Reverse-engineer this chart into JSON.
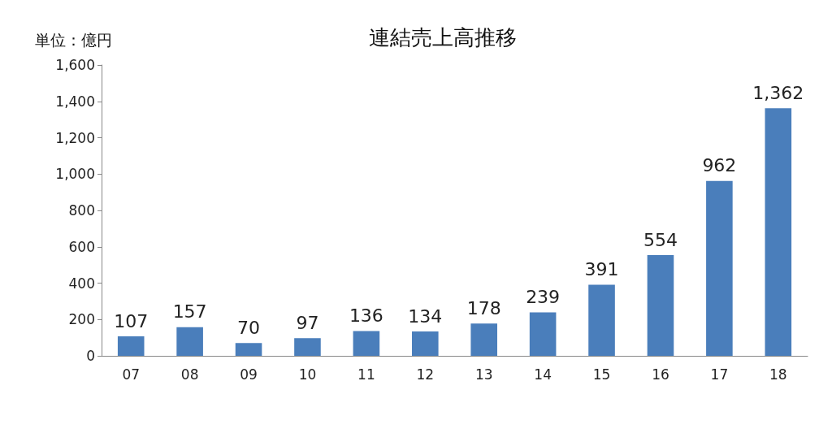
{
  "chart_data": {
    "type": "bar",
    "title": "連結売上高推移",
    "ylabel": "単位：億円",
    "categories": [
      "07",
      "08",
      "09",
      "10",
      "11",
      "12",
      "13",
      "14",
      "15",
      "16",
      "17",
      "18"
    ],
    "values": [
      107,
      157,
      70,
      97,
      136,
      134,
      178,
      239,
      391,
      554,
      962,
      1362
    ],
    "value_labels": [
      "107",
      "157",
      "70",
      "97",
      "136",
      "134",
      "178",
      "239",
      "391",
      "554",
      "962",
      "1,362"
    ],
    "color": "#4a7ebb",
    "ylim": [
      0,
      1600
    ],
    "yticks": [
      {
        "value": 0,
        "label": "0"
      },
      {
        "value": 200,
        "label": "200"
      },
      {
        "value": 400,
        "label": "400"
      },
      {
        "value": 600,
        "label": "600"
      },
      {
        "value": 800,
        "label": "800"
      },
      {
        "value": 1000,
        "label": "1,000"
      },
      {
        "value": 1200,
        "label": "1,200"
      },
      {
        "value": 1400,
        "label": "1,400"
      },
      {
        "value": 1600,
        "label": "1,600"
      }
    ],
    "grid": false
  }
}
